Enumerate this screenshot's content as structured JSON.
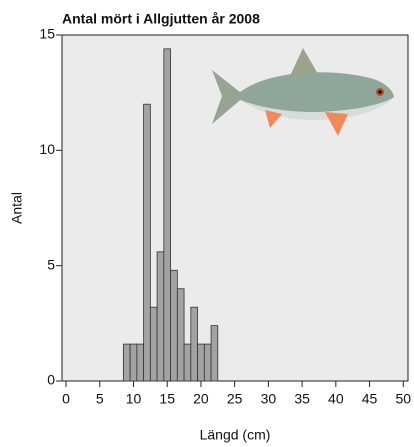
{
  "chart_data": {
    "type": "histogram",
    "title": "Antal mört i Allgjutten år 2008",
    "x_label": "Längd (cm)",
    "y_label": "Antal",
    "bins": [
      8.5,
      9.5,
      10.5,
      11.5,
      12.5,
      13.5,
      14.5,
      15.5,
      16.5,
      17.5,
      18.5,
      19.5,
      20.5,
      21.5,
      22.5
    ],
    "values": [
      1.6,
      1.6,
      1.6,
      12,
      3.2,
      5.6,
      14.4,
      4.8,
      4.0,
      1.6,
      3.2,
      1.6,
      1.6,
      2.4
    ],
    "color": "#a3a3a3",
    "xlim": [
      -0.6,
      50.7
    ],
    "ylim": [
      0,
      15
    ],
    "xticks": [
      0,
      5,
      10,
      15,
      20,
      25,
      30,
      35,
      40,
      45,
      50
    ],
    "yticks": [
      0,
      5,
      10,
      15
    ]
  }
}
